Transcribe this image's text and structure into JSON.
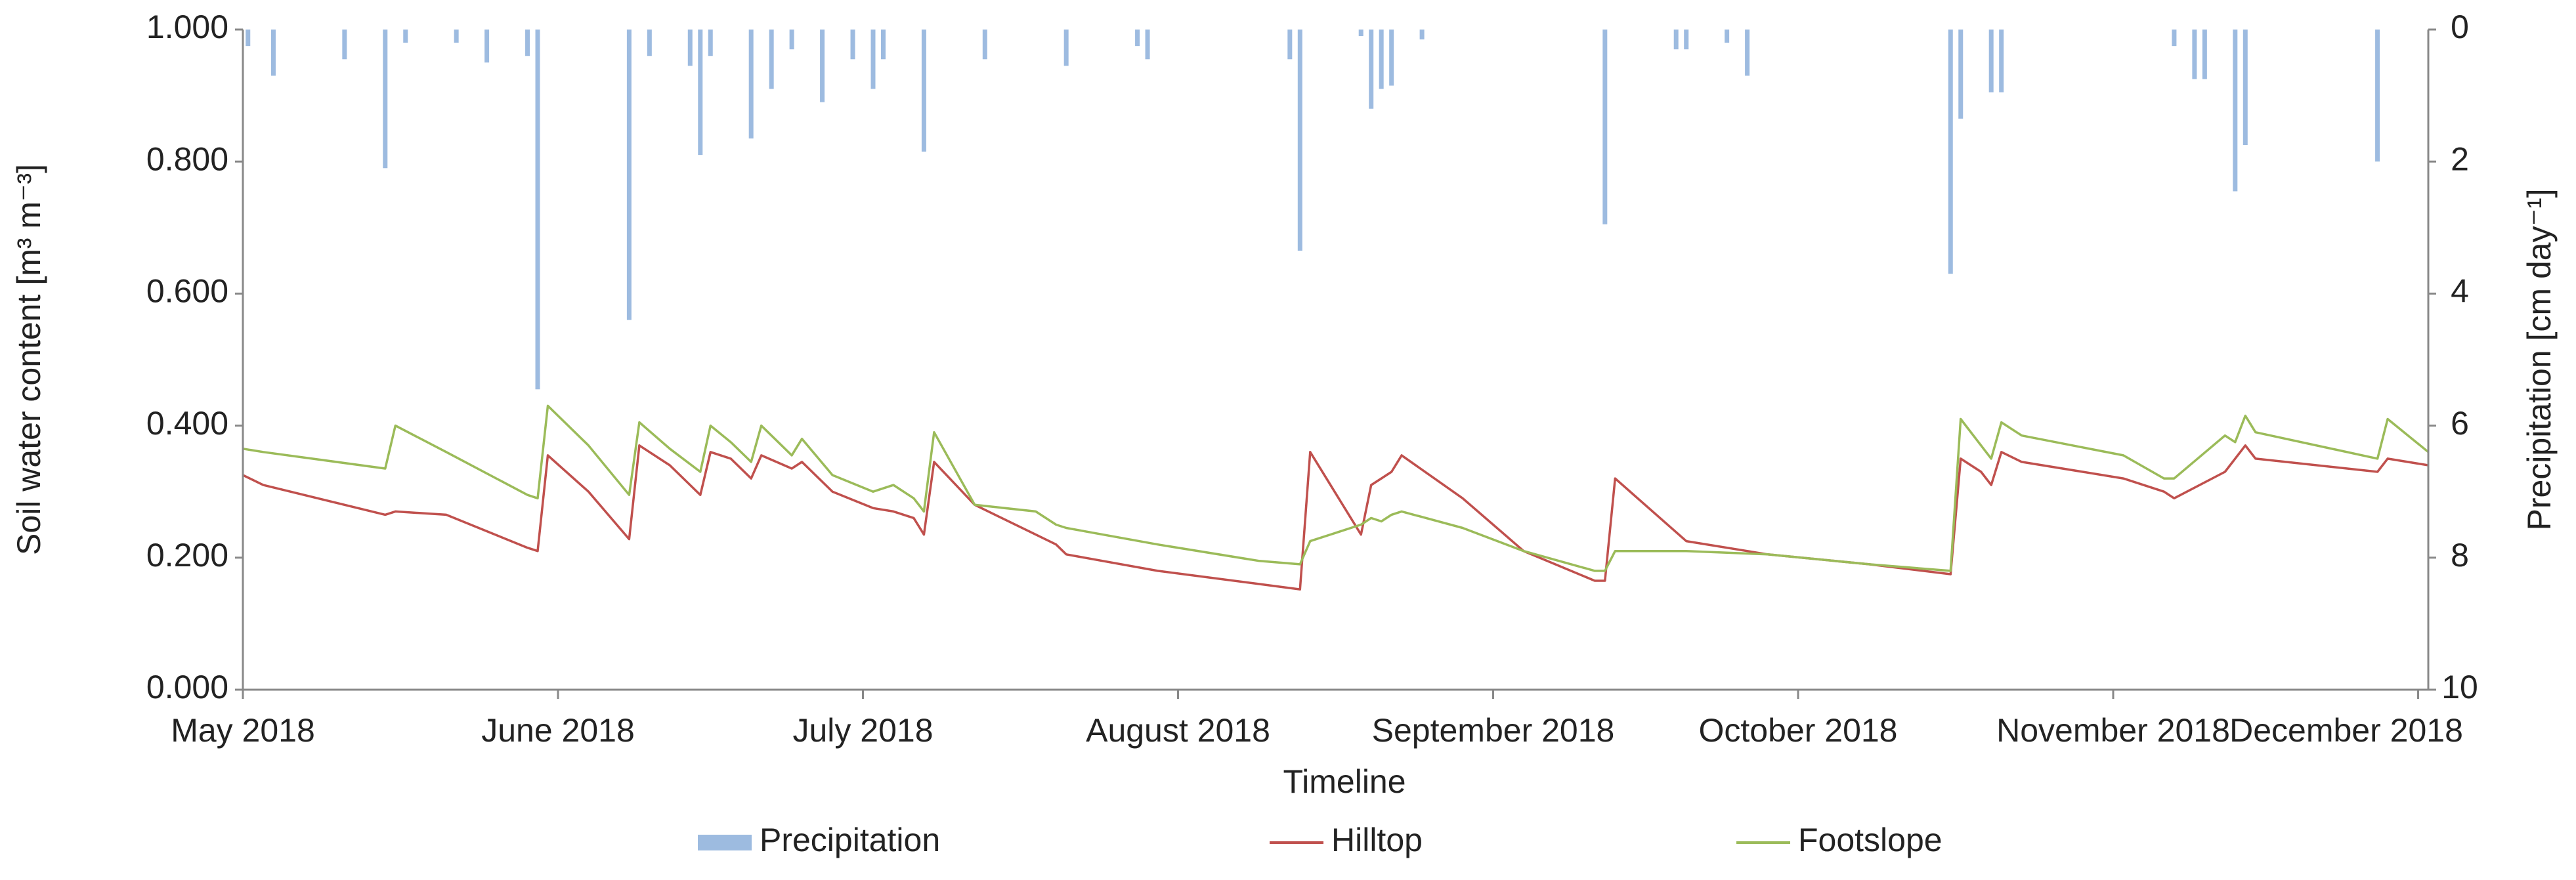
{
  "chart_data": {
    "type": "line",
    "x_label": "Timeline",
    "y_label": "Soil water content [m³ m⁻³]",
    "y2_label": "Precipitation [cm day⁻¹]",
    "xlim": [
      0,
      215
    ],
    "xticks": [
      {
        "value": 0,
        "label": "May 2018"
      },
      {
        "value": 31,
        "label": "June 2018"
      },
      {
        "value": 61,
        "label": "July 2018"
      },
      {
        "value": 92,
        "label": "August 2018"
      },
      {
        "value": 123,
        "label": "September 2018"
      },
      {
        "value": 153,
        "label": "October 2018"
      },
      {
        "value": 184,
        "label": "November 2018"
      },
      {
        "value": 214,
        "label": "December 2018"
      }
    ],
    "ylim": [
      0,
      1
    ],
    "yticks": [
      {
        "value": 0,
        "label": "0.000"
      },
      {
        "value": 0.2,
        "label": "0.200"
      },
      {
        "value": 0.4,
        "label": "0.400"
      },
      {
        "value": 0.6,
        "label": "0.600"
      },
      {
        "value": 0.8,
        "label": "0.800"
      },
      {
        "value": 1,
        "label": "1.000"
      }
    ],
    "y2lim": [
      10,
      0
    ],
    "y2ticks": [
      0,
      2,
      4,
      6,
      8,
      10
    ],
    "legend": "bottom",
    "x": [
      0,
      2,
      14,
      15,
      20,
      28,
      29,
      30,
      34,
      38,
      39,
      42,
      45,
      46,
      48,
      50,
      51,
      54,
      55,
      58,
      62,
      64,
      66,
      67,
      68,
      72,
      78,
      80,
      81,
      90,
      100,
      104,
      105,
      110,
      111,
      112,
      113,
      114,
      120,
      126,
      133,
      134,
      135,
      142,
      150,
      160,
      168,
      169,
      171,
      172,
      173,
      175,
      185,
      189,
      190,
      195,
      196,
      197,
      198,
      210,
      211,
      215
    ],
    "series": [
      {
        "name": "Precipitation",
        "type": "bar",
        "axis": "y2",
        "color": "#9dbbe0",
        "x": [
          0.5,
          3,
          10,
          14,
          16,
          21,
          24,
          28,
          29,
          38,
          40,
          44,
          45,
          46,
          50,
          52,
          54,
          57,
          60,
          62,
          63,
          67,
          73,
          81,
          88,
          89,
          103,
          104,
          110,
          111,
          112,
          113,
          116,
          134,
          141,
          142,
          146,
          148,
          168,
          169,
          172,
          173,
          190,
          192,
          193,
          196,
          197,
          210
        ],
        "values": [
          0.25,
          0.7,
          0.45,
          2.1,
          0.2,
          0.2,
          0.5,
          0.4,
          5.45,
          4.4,
          0.4,
          0.55,
          1.9,
          0.4,
          1.65,
          0.9,
          0.3,
          1.1,
          0.45,
          0.9,
          0.45,
          1.85,
          0.45,
          0.55,
          0.25,
          0.45,
          0.45,
          3.35,
          0.1,
          1.2,
          0.9,
          0.85,
          0.15,
          2.95,
          0.3,
          0.3,
          0.2,
          0.7,
          3.7,
          1.35,
          0.95,
          0.95,
          0.25,
          0.75,
          0.75,
          2.45,
          1.75,
          2.0
        ]
      },
      {
        "name": "Hilltop",
        "type": "line",
        "color": "#c0504d",
        "values": [
          0.325,
          0.31,
          0.265,
          0.27,
          0.265,
          0.215,
          0.21,
          0.355,
          0.3,
          0.228,
          0.37,
          0.34,
          0.295,
          0.36,
          0.35,
          0.32,
          0.355,
          0.335,
          0.345,
          0.3,
          0.275,
          0.27,
          0.26,
          0.235,
          0.345,
          0.28,
          0.235,
          0.22,
          0.205,
          0.18,
          0.16,
          0.152,
          0.36,
          0.235,
          0.31,
          0.32,
          0.33,
          0.355,
          0.29,
          0.21,
          0.165,
          0.165,
          0.32,
          0.225,
          0.205,
          0.19,
          0.175,
          0.35,
          0.33,
          0.31,
          0.36,
          0.345,
          0.32,
          0.3,
          0.29,
          0.33,
          0.35,
          0.37,
          0.35,
          0.33,
          0.35,
          0.34
        ]
      },
      {
        "name": "Footslope",
        "type": "line",
        "color": "#9bbb59",
        "values": [
          0.365,
          0.36,
          0.335,
          0.4,
          0.36,
          0.295,
          0.29,
          0.43,
          0.37,
          0.295,
          0.405,
          0.365,
          0.33,
          0.4,
          0.375,
          0.345,
          0.4,
          0.355,
          0.38,
          0.325,
          0.3,
          0.31,
          0.29,
          0.27,
          0.39,
          0.28,
          0.27,
          0.25,
          0.245,
          0.22,
          0.195,
          0.19,
          0.225,
          0.25,
          0.26,
          0.255,
          0.265,
          0.27,
          0.245,
          0.21,
          0.18,
          0.18,
          0.21,
          0.21,
          0.205,
          0.19,
          0.18,
          0.41,
          0.37,
          0.35,
          0.405,
          0.385,
          0.355,
          0.32,
          0.32,
          0.385,
          0.375,
          0.415,
          0.39,
          0.35,
          0.41,
          0.36
        ]
      }
    ]
  }
}
